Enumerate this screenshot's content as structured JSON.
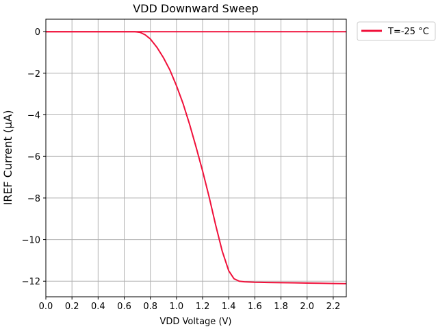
{
  "chart_data": {
    "type": "line",
    "title": "VDD Downward Sweep",
    "xlabel": "VDD Voltage (V)",
    "ylabel": "IREF Current (μA)",
    "xlim": [
      0.0,
      2.3
    ],
    "ylim": [
      -12.75,
      0.6
    ],
    "x_ticks": [
      0.0,
      0.2,
      0.4,
      0.6,
      0.8,
      1.0,
      1.2,
      1.4,
      1.6,
      1.8,
      2.0,
      2.2
    ],
    "x_tick_labels": [
      "0.0",
      "0.2",
      "0.4",
      "0.6",
      "0.8",
      "1.0",
      "1.2",
      "1.4",
      "1.6",
      "1.8",
      "2.0",
      "2.2"
    ],
    "y_ticks": [
      0,
      -2,
      -4,
      -6,
      -8,
      -10,
      -12
    ],
    "y_tick_labels": [
      "0",
      "−2",
      "−4",
      "−6",
      "−8",
      "−10",
      "−12"
    ],
    "grid": true,
    "legend_position": "outside-top-right",
    "series": [
      {
        "name": "T=-25 °C",
        "color": "#f0103a",
        "x": [
          0.0,
          0.6,
          0.68,
          0.72,
          0.76,
          0.8,
          0.85,
          0.9,
          0.95,
          1.0,
          1.05,
          1.1,
          1.15,
          1.2,
          1.25,
          1.3,
          1.35,
          1.4,
          1.44,
          1.48,
          1.52,
          1.6,
          1.7,
          1.8,
          1.9,
          2.0,
          2.1,
          2.2,
          2.3
        ],
        "y": [
          0.0,
          0.0,
          0.0,
          -0.03,
          -0.15,
          -0.35,
          -0.75,
          -1.25,
          -1.85,
          -2.6,
          -3.45,
          -4.45,
          -5.55,
          -6.7,
          -7.95,
          -9.3,
          -10.55,
          -11.5,
          -11.88,
          -12.0,
          -12.03,
          -12.05,
          -12.06,
          -12.07,
          -12.08,
          -12.09,
          -12.1,
          -12.11,
          -12.12
        ]
      },
      {
        "name": "",
        "color": "#f0103a",
        "x": [
          0.0,
          2.3
        ],
        "y": [
          0.0,
          0.0
        ]
      }
    ]
  }
}
